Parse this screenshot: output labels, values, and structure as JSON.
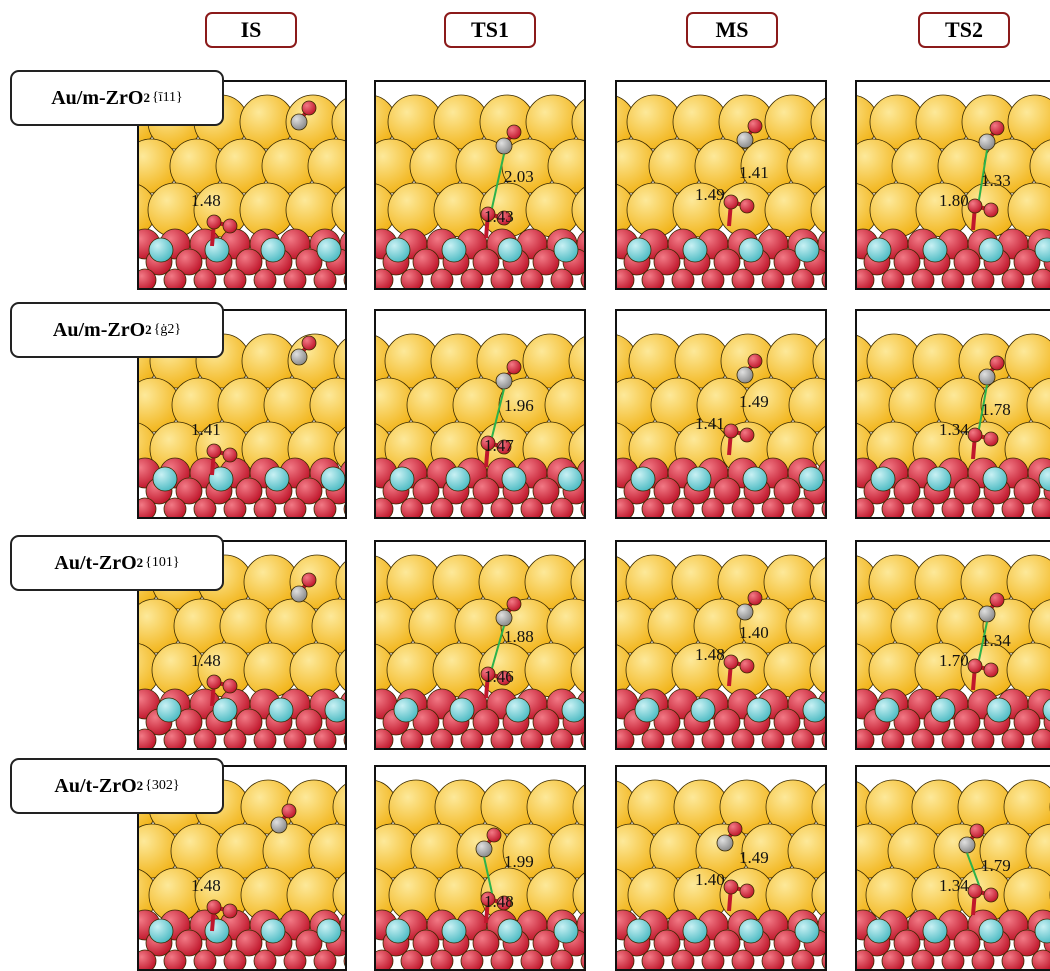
{
  "columns": [
    "IS",
    "TS1",
    "MS",
    "TS2"
  ],
  "colors": {
    "gold": "#f2b51c",
    "oxygen": "#c0172c",
    "zirconium": "#4fbcc4",
    "carbon": "#8a8a8a",
    "arrow": "#2bb24c",
    "header_border": "#8b1a1a"
  },
  "rows": [
    {
      "label_main": "Au/m-ZrO",
      "label_sub": "2",
      "label_face": "{̅1̅1̅1}",
      "face_text": "{ī11}",
      "distances": [
        [
          "1.48"
        ],
        [
          "2.03",
          "1.43"
        ],
        [
          "1.49",
          "1.41"
        ],
        [
          "1.80",
          "1.33"
        ]
      ]
    },
    {
      "label_main": "Au/m-ZrO",
      "label_sub": "2",
      "face_text": "{ġ2}",
      "distances": [
        [
          "1.41"
        ],
        [
          "1.96",
          "1.47"
        ],
        [
          "1.41",
          "1.49"
        ],
        [
          "1.34",
          "1.78"
        ]
      ]
    },
    {
      "label_main": "Au/t-ZrO",
      "label_sub": "2",
      "face_text": "{101}",
      "distances": [
        [
          "1.48"
        ],
        [
          "1.88",
          "1.46"
        ],
        [
          "1.48",
          "1.40"
        ],
        [
          "1.70",
          "1.34"
        ]
      ]
    },
    {
      "label_main": "Au/t-ZrO",
      "label_sub": "2",
      "face_text": "{302}",
      "distances": [
        [
          "1.48"
        ],
        [
          "1.99",
          "1.48"
        ],
        [
          "1.40",
          "1.49"
        ],
        [
          "1.34",
          "1.79"
        ]
      ]
    }
  ]
}
